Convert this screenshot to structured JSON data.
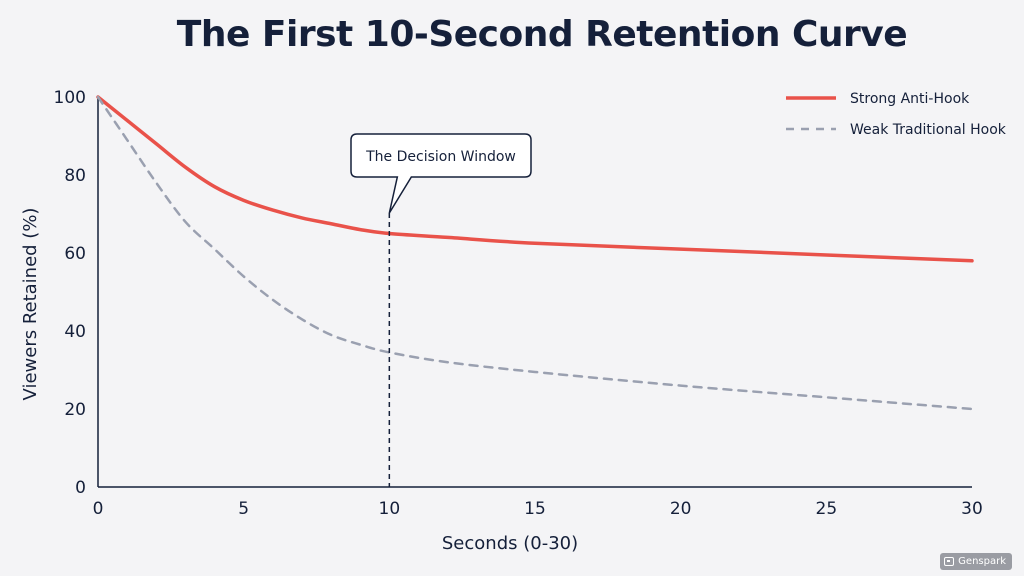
{
  "chart_data": {
    "type": "line",
    "title": "The First 10-Second Retention Curve",
    "xlabel": "Seconds (0-30)",
    "ylabel": "Viewers Retained (%)",
    "xlim": [
      0,
      30
    ],
    "ylim": [
      0,
      100
    ],
    "x_ticks": [
      0,
      5,
      10,
      15,
      20,
      25,
      30
    ],
    "y_ticks": [
      0,
      20,
      40,
      60,
      80,
      100
    ],
    "grid": false,
    "legend_position": "top-right",
    "annotation": {
      "label": "The Decision Window",
      "x": 10
    },
    "series": [
      {
        "name": "Strong Anti-Hook",
        "color": "#e9524a",
        "style": "solid",
        "x": [
          0,
          1,
          2,
          3,
          4,
          5,
          6,
          7,
          8,
          9,
          10,
          12,
          15,
          20,
          25,
          30
        ],
        "y": [
          100,
          94,
          88,
          82,
          77,
          73.5,
          71,
          69,
          67.5,
          66,
          65,
          64,
          62.5,
          61,
          59.5,
          58
        ]
      },
      {
        "name": "Weak Traditional Hook",
        "color": "#9aa0b0",
        "style": "dashed",
        "x": [
          0,
          1,
          2,
          3,
          4,
          5,
          6,
          7,
          8,
          9,
          10,
          12,
          15,
          20,
          25,
          30
        ],
        "y": [
          100,
          89,
          78,
          68,
          61,
          54,
          48,
          43,
          39,
          36.5,
          34.5,
          32,
          29.5,
          26,
          23,
          20
        ]
      }
    ]
  },
  "badge": {
    "label": "Genspark"
  }
}
